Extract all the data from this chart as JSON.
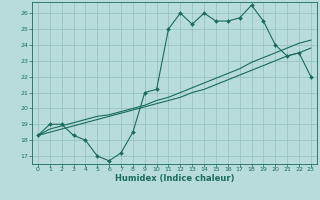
{
  "title": "",
  "xlabel": "Humidex (Indice chaleur)",
  "bg_color": "#b8ddd8",
  "line_color": "#1a6b5a",
  "grid_color": "#90c0b8",
  "xlim": [
    -0.5,
    23.5
  ],
  "ylim": [
    16.5,
    26.7
  ],
  "xticks": [
    0,
    1,
    2,
    3,
    4,
    5,
    6,
    7,
    8,
    9,
    10,
    11,
    12,
    13,
    14,
    15,
    16,
    17,
    18,
    19,
    20,
    21,
    22,
    23
  ],
  "yticks": [
    17,
    18,
    19,
    20,
    21,
    22,
    23,
    24,
    25,
    26
  ],
  "line1_x": [
    0,
    1,
    2,
    3,
    4,
    5,
    6,
    7,
    8,
    9,
    10,
    11,
    12,
    13,
    14,
    15,
    16,
    17,
    18,
    19,
    20,
    21,
    22,
    23
  ],
  "line1_y": [
    18.3,
    19.0,
    19.0,
    18.3,
    18.0,
    17.0,
    16.7,
    17.2,
    18.5,
    21.0,
    21.2,
    25.0,
    26.0,
    25.3,
    26.0,
    25.5,
    25.5,
    25.7,
    26.5,
    25.5,
    24.0,
    23.3,
    23.5,
    22.0
  ],
  "line2_x": [
    0,
    1,
    2,
    3,
    4,
    5,
    6,
    7,
    8,
    9,
    10,
    11,
    12,
    13,
    14,
    15,
    16,
    17,
    18,
    19,
    20,
    21,
    22,
    23
  ],
  "line2_y": [
    18.3,
    18.7,
    18.9,
    19.1,
    19.3,
    19.5,
    19.6,
    19.8,
    20.0,
    20.2,
    20.5,
    20.7,
    21.0,
    21.3,
    21.6,
    21.9,
    22.2,
    22.5,
    22.9,
    23.2,
    23.5,
    23.8,
    24.1,
    24.3
  ],
  "line3_x": [
    0,
    1,
    2,
    3,
    4,
    5,
    6,
    7,
    8,
    9,
    10,
    11,
    12,
    13,
    14,
    15,
    16,
    17,
    18,
    19,
    20,
    21,
    22,
    23
  ],
  "line3_y": [
    18.3,
    18.5,
    18.7,
    18.9,
    19.1,
    19.3,
    19.5,
    19.7,
    19.9,
    20.1,
    20.3,
    20.5,
    20.7,
    21.0,
    21.2,
    21.5,
    21.8,
    22.1,
    22.4,
    22.7,
    23.0,
    23.3,
    23.5,
    23.8
  ]
}
